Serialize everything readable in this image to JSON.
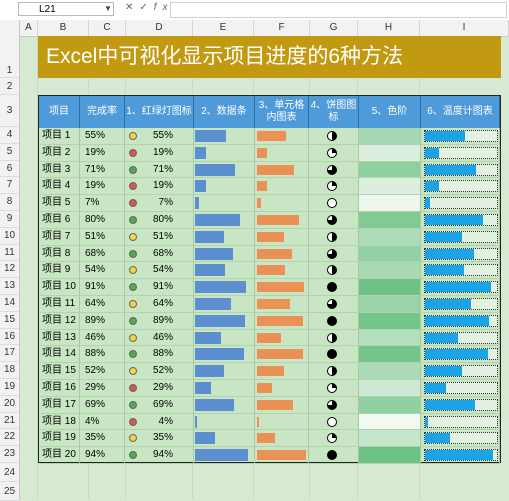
{
  "name_box": "L21",
  "columns": [
    "A",
    "B",
    "C",
    "D",
    "E",
    "F",
    "G",
    "H",
    "I"
  ],
  "row_numbers": [
    "1",
    "2",
    "3",
    "4",
    "5",
    "6",
    "7",
    "8",
    "9",
    "10",
    "11",
    "12",
    "13",
    "14",
    "15",
    "16",
    "17",
    "18",
    "19",
    "20",
    "21",
    "22",
    "23",
    "24",
    "25"
  ],
  "title": "Excel中可视化显示项目进度的6种方法",
  "headers": [
    "项目",
    "完成率",
    "1、红绿灯图标",
    "2、数据条",
    "3、单元格内图表",
    "4、饼图图标",
    "5、色阶",
    "6、温度计图表"
  ],
  "colors": {
    "title_bg": "#c29a11",
    "header_bg": "#4f9ad8",
    "bar": "#5b8fd0",
    "cell_chart": "#ec9155",
    "therm": "#1aa3e6",
    "green": "#47b047",
    "yellow": "#f5d442",
    "red": "#e2514a"
  },
  "rows": [
    {
      "name": "项目 1",
      "pct": "55%",
      "v": 0.55
    },
    {
      "name": "项目 2",
      "pct": "19%",
      "v": 0.19
    },
    {
      "name": "项目 3",
      "pct": "71%",
      "v": 0.71
    },
    {
      "name": "项目 4",
      "pct": "19%",
      "v": 0.19
    },
    {
      "name": "项目 5",
      "pct": "7%",
      "v": 0.07
    },
    {
      "name": "项目 6",
      "pct": "80%",
      "v": 0.8
    },
    {
      "name": "项目 7",
      "pct": "51%",
      "v": 0.51
    },
    {
      "name": "项目 8",
      "pct": "68%",
      "v": 0.68
    },
    {
      "name": "项目 9",
      "pct": "54%",
      "v": 0.54
    },
    {
      "name": "项目 10",
      "pct": "91%",
      "v": 0.91
    },
    {
      "name": "项目 11",
      "pct": "64%",
      "v": 0.64
    },
    {
      "name": "项目 12",
      "pct": "89%",
      "v": 0.89
    },
    {
      "name": "项目 13",
      "pct": "46%",
      "v": 0.46
    },
    {
      "name": "项目 14",
      "pct": "88%",
      "v": 0.88
    },
    {
      "name": "项目 15",
      "pct": "52%",
      "v": 0.52
    },
    {
      "name": "项目 16",
      "pct": "29%",
      "v": 0.29
    },
    {
      "name": "项目 17",
      "pct": "69%",
      "v": 0.69
    },
    {
      "name": "项目 18",
      "pct": "4%",
      "v": 0.04
    },
    {
      "name": "项目 19",
      "pct": "35%",
      "v": 0.35
    },
    {
      "name": "项目 20",
      "pct": "94%",
      "v": 0.94
    }
  ]
}
